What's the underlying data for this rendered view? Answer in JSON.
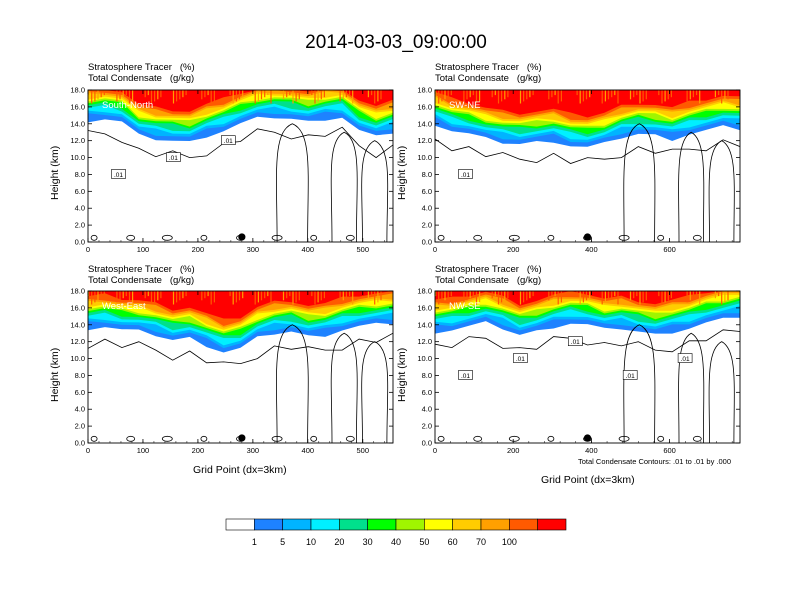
{
  "title": "2014-03-03_09:00:00",
  "colors": {
    "levels": [
      "#ffffff",
      "#1e82ff",
      "#00b4ff",
      "#00f0ff",
      "#00e08c",
      "#00ff00",
      "#a0f500",
      "#ffff00",
      "#ffcc00",
      "#ffa000",
      "#ff5a00",
      "#ff0000"
    ],
    "contour": "#000000"
  },
  "panel_header": {
    "line1": "Stratosphere Tracer   (%)",
    "line2": "Total Condensate   (g/kg)"
  },
  "ylabel": "Height (km)",
  "xlabel": "Grid Point (dx=3km)",
  "footnote": "Total Condensate Contours: .01 to .01 by .000",
  "colorbar": {
    "labels": [
      "1",
      "5",
      "10",
      "20",
      "30",
      "40",
      "50",
      "60",
      "70",
      "100"
    ]
  },
  "chart_data": [
    {
      "type": "heatmap",
      "panel_label": "South-North",
      "xlim": [
        0,
        555
      ],
      "xticks": [
        "0",
        "100",
        "200",
        "300",
        "400",
        "500"
      ],
      "ylim": [
        0,
        18
      ],
      "yticks": [
        "0.0",
        "2.0",
        "4.0",
        "6.0",
        "8.0",
        "10.0",
        "12.0",
        "14.0",
        "16.0",
        "18.0"
      ],
      "contour_labels": [
        ".01",
        ".01",
        ".01"
      ],
      "marker_x": 280,
      "tracer_base_km": [
        14.4,
        14.6,
        14.2,
        12.6,
        12.2,
        12.0,
        11.8,
        12.6,
        13.2,
        14.0,
        14.6,
        14.8,
        14.6,
        14.2,
        14.6,
        14.8,
        13.2,
        12.4,
        13.0
      ]
    },
    {
      "type": "heatmap",
      "panel_label": "SW-NE",
      "xlim": [
        0,
        780
      ],
      "xticks": [
        "0",
        "200",
        "400",
        "600"
      ],
      "ylim": [
        0,
        18
      ],
      "yticks": [
        "0.0",
        "2.0",
        "4.0",
        "6.0",
        "8.0",
        "10.0",
        "12.0",
        "14.0",
        "16.0",
        "18.0"
      ],
      "contour_labels": [
        ".01"
      ],
      "marker_x": 390,
      "tracer_base_km": [
        14.0,
        13.2,
        12.8,
        12.2,
        11.8,
        11.6,
        11.8,
        12.0,
        11.4,
        11.2,
        11.6,
        12.4,
        12.8,
        12.6,
        12.2,
        12.8,
        13.2,
        13.6,
        13.4
      ]
    },
    {
      "type": "heatmap",
      "panel_label": "West-East",
      "xlim": [
        0,
        555
      ],
      "xticks": [
        "0",
        "100",
        "200",
        "300",
        "400",
        "500"
      ],
      "ylim": [
        0,
        18
      ],
      "yticks": [
        "0.0",
        "2.0",
        "4.0",
        "6.0",
        "8.0",
        "10.0",
        "12.0",
        "14.0",
        "16.0",
        "18.0"
      ],
      "contour_labels": [],
      "marker_x": 280,
      "tracer_base_km": [
        13.6,
        13.8,
        13.4,
        13.2,
        12.8,
        12.2,
        12.4,
        11.6,
        10.8,
        11.2,
        12.4,
        13.0,
        13.2,
        12.6,
        12.8,
        13.4,
        13.8,
        14.0,
        14.2
      ]
    },
    {
      "type": "heatmap",
      "panel_label": "NW-SE",
      "xlim": [
        0,
        780
      ],
      "xticks": [
        "0",
        "200",
        "400",
        "600"
      ],
      "ylim": [
        0,
        18
      ],
      "yticks": [
        "0.0",
        "2.0",
        "4.0",
        "6.0",
        "8.0",
        "10.0",
        "12.0",
        "14.0",
        "16.0",
        "18.0"
      ],
      "contour_labels": [
        ".01",
        ".01",
        ".01",
        ".01",
        ".01"
      ],
      "marker_x": 390,
      "tracer_base_km": [
        13.2,
        13.4,
        13.8,
        14.2,
        13.6,
        12.8,
        13.2,
        13.8,
        14.2,
        14.0,
        13.4,
        13.6,
        13.2,
        12.8,
        13.2,
        13.6,
        14.2,
        14.6,
        15.0
      ]
    }
  ]
}
